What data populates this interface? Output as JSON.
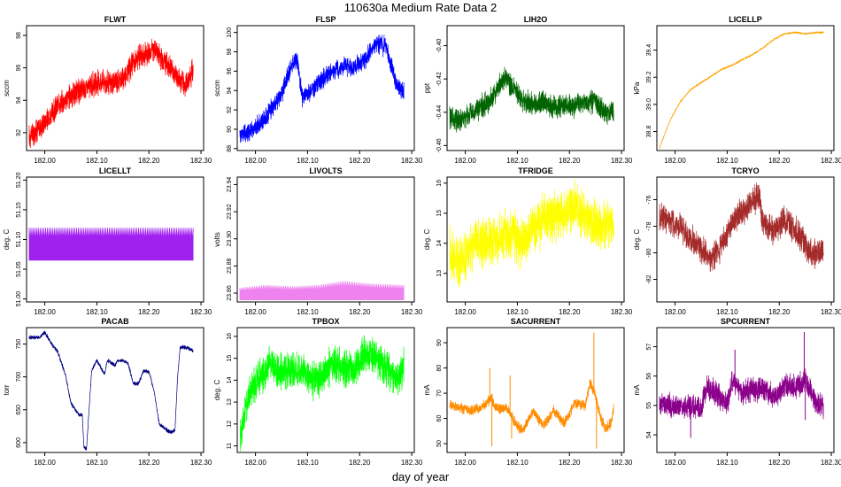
{
  "figure": {
    "title": "110630a   Medium Rate Data 2",
    "xlabel": "day of year"
  },
  "chart_data": [
    {
      "type": "line",
      "title": "FLWT",
      "ylabel": "sccm",
      "color": "#ff0000",
      "xlim": [
        181.965,
        182.305
      ],
      "ylim": [
        90.9,
        98.6
      ],
      "xticks": [
        182.0,
        182.1,
        182.2,
        182.3
      ],
      "xtick_labels": [
        "182.00",
        "182.10",
        "182.20",
        "182.30"
      ],
      "yticks": [
        92,
        94,
        96,
        98
      ],
      "ytick_labels": [
        "92",
        "94",
        "96",
        "98"
      ],
      "x": [
        181.97,
        181.99,
        182.01,
        182.03,
        182.05,
        182.07,
        182.09,
        182.11,
        182.13,
        182.15,
        182.17,
        182.19,
        182.21,
        182.23,
        182.25,
        182.27,
        182.285
      ],
      "y": [
        91.8,
        92.3,
        93.0,
        93.8,
        94.3,
        94.6,
        94.9,
        95.2,
        95.0,
        95.4,
        96.3,
        96.8,
        97.2,
        96.5,
        95.6,
        94.9,
        95.8
      ],
      "noise": 0.9
    },
    {
      "type": "line",
      "title": "FLSP",
      "ylabel": "sccm",
      "color": "#0000ff",
      "xlim": [
        181.965,
        182.305
      ],
      "ylim": [
        87.8,
        100.7
      ],
      "xticks": [
        182.0,
        182.1,
        182.2,
        182.3
      ],
      "xtick_labels": [
        "182.00",
        "182.10",
        "182.20",
        "182.30"
      ],
      "yticks": [
        88,
        90,
        92,
        94,
        96,
        98,
        100
      ],
      "ytick_labels": [
        "88",
        "90",
        "92",
        "94",
        "96",
        "98",
        "100"
      ],
      "x": [
        181.97,
        181.99,
        182.01,
        182.03,
        182.05,
        182.07,
        182.08,
        182.09,
        182.11,
        182.13,
        182.15,
        182.17,
        182.19,
        182.21,
        182.23,
        182.25,
        182.27,
        182.285
      ],
      "y": [
        89.3,
        89.8,
        90.6,
        92.0,
        93.6,
        96.7,
        97.4,
        93.2,
        94.2,
        95.3,
        96.0,
        96.6,
        96.4,
        97.2,
        98.8,
        98.6,
        94.8,
        93.8
      ],
      "noise": 1.2
    },
    {
      "type": "line",
      "title": "LIH2O",
      "ylabel": "ppt",
      "color": "#006400",
      "xlim": [
        181.965,
        182.305
      ],
      "ylim": [
        -0.463,
        -0.388
      ],
      "xticks": [
        182.0,
        182.1,
        182.2,
        182.3
      ],
      "xtick_labels": [
        "182.00",
        "182.10",
        "182.20",
        "182.30"
      ],
      "yticks": [
        -0.46,
        -0.44,
        -0.42,
        -0.4
      ],
      "ytick_labels": [
        "-0.46",
        "-0.44",
        "-0.42",
        "-0.40"
      ],
      "x": [
        181.97,
        181.99,
        182.01,
        182.03,
        182.05,
        182.07,
        182.08,
        182.09,
        182.11,
        182.13,
        182.15,
        182.17,
        182.19,
        182.21,
        182.23,
        182.25,
        182.27,
        182.285
      ],
      "y": [
        -0.443,
        -0.445,
        -0.441,
        -0.437,
        -0.432,
        -0.422,
        -0.419,
        -0.425,
        -0.433,
        -0.436,
        -0.434,
        -0.437,
        -0.436,
        -0.437,
        -0.434,
        -0.433,
        -0.441,
        -0.44
      ],
      "noise": 0.0085
    },
    {
      "type": "line",
      "title": "LICELLP",
      "ylabel": "kPa",
      "color": "#ffa500",
      "xlim": [
        181.965,
        182.305
      ],
      "ylim": [
        38.66,
        39.58
      ],
      "xticks": [
        182.0,
        182.1,
        182.2,
        182.3
      ],
      "xtick_labels": [
        "182.00",
        "182.10",
        "182.20",
        "182.30"
      ],
      "yticks": [
        38.8,
        39.0,
        39.2,
        39.4
      ],
      "ytick_labels": [
        "38.8",
        "39.0",
        "39.2",
        "39.4"
      ],
      "x": [
        181.97,
        181.99,
        182.01,
        182.03,
        182.05,
        182.07,
        182.09,
        182.11,
        182.13,
        182.15,
        182.17,
        182.19,
        182.21,
        182.23,
        182.25,
        182.27,
        182.285
      ],
      "y": [
        38.68,
        38.88,
        39.02,
        39.11,
        39.16,
        39.21,
        39.26,
        39.29,
        39.33,
        39.37,
        39.42,
        39.48,
        39.52,
        39.53,
        39.52,
        39.53,
        39.53
      ],
      "noise": 0.008
    },
    {
      "type": "band",
      "title": "LICELLT",
      "ylabel": "deg. C",
      "color": "#a020f0",
      "xlim": [
        181.965,
        182.305
      ],
      "ylim": [
        50.995,
        51.205
      ],
      "xticks": [
        182.0,
        182.1,
        182.2,
        182.3
      ],
      "xtick_labels": [
        "182.00",
        "182.10",
        "182.20",
        "182.30"
      ],
      "yticks": [
        51.0,
        51.05,
        51.1,
        51.15,
        51.2
      ],
      "ytick_labels": [
        "51.00",
        "51.05",
        "51.10",
        "51.15",
        "51.20"
      ],
      "x": [
        181.97,
        182.285
      ],
      "ymin": [
        51.065,
        51.065
      ],
      "ymax": [
        51.12,
        51.12
      ]
    },
    {
      "type": "band",
      "title": "LIVOLTS",
      "ylabel": "volts",
      "color": "#ee82ee",
      "xlim": [
        181.965,
        182.305
      ],
      "ylim": [
        23.8535,
        23.9455
      ],
      "xticks": [
        182.0,
        182.1,
        182.2,
        182.3
      ],
      "xtick_labels": [
        "182.00",
        "182.10",
        "182.20",
        "182.30"
      ],
      "yticks": [
        23.86,
        23.88,
        23.9,
        23.92,
        23.94
      ],
      "ytick_labels": [
        "23.86",
        "23.88",
        "23.90",
        "23.92",
        "23.94"
      ],
      "x": [
        181.97,
        182.02,
        182.07,
        182.12,
        182.17,
        182.22,
        182.285
      ],
      "ymin": [
        23.855,
        23.855,
        23.855,
        23.855,
        23.855,
        23.855,
        23.855
      ],
      "ymax": [
        23.864,
        23.866,
        23.865,
        23.866,
        23.869,
        23.867,
        23.866
      ]
    },
    {
      "type": "line",
      "title": "TFRIDGE",
      "ylabel": "deg. C",
      "color": "#ffff00",
      "xlim": [
        181.965,
        182.305
      ],
      "ylim": [
        12.05,
        16.2
      ],
      "xticks": [
        182.0,
        182.1,
        182.2,
        182.3
      ],
      "xtick_labels": [
        "182.00",
        "182.10",
        "182.20",
        "182.30"
      ],
      "yticks": [
        13,
        14,
        15,
        16
      ],
      "ytick_labels": [
        "13",
        "14",
        "15",
        "16"
      ],
      "x": [
        181.97,
        181.99,
        182.01,
        182.03,
        182.05,
        182.07,
        182.09,
        182.11,
        182.13,
        182.15,
        182.17,
        182.19,
        182.21,
        182.23,
        182.25,
        182.27,
        182.285
      ],
      "y": [
        13.7,
        13.3,
        13.9,
        14.1,
        14.0,
        14.2,
        14.3,
        14.0,
        14.5,
        14.8,
        14.9,
        15.1,
        15.3,
        14.8,
        14.6,
        14.6,
        14.7
      ],
      "noise": 1.0
    },
    {
      "type": "line",
      "title": "TCRYO",
      "ylabel": "deg. C",
      "color": "#a52a2a",
      "xlim": [
        181.965,
        182.305
      ],
      "ylim": [
        -83.7,
        -74.3
      ],
      "xticks": [
        182.0,
        182.1,
        182.2,
        182.3
      ],
      "xtick_labels": [
        "182.00",
        "182.10",
        "182.20",
        "182.30"
      ],
      "yticks": [
        -82,
        -80,
        -78,
        -76
      ],
      "ytick_labels": [
        "-82",
        "-80",
        "-78",
        "-76"
      ],
      "x": [
        181.97,
        181.99,
        182.01,
        182.03,
        182.05,
        182.07,
        182.09,
        182.11,
        182.13,
        182.15,
        182.16,
        182.17,
        182.19,
        182.21,
        182.23,
        182.25,
        182.27,
        182.285
      ],
      "y": [
        -77.3,
        -77.6,
        -78.0,
        -79.0,
        -79.7,
        -80.6,
        -79.4,
        -77.6,
        -76.9,
        -76.2,
        -75.7,
        -77.8,
        -78.3,
        -77.5,
        -78.3,
        -79.5,
        -80.2,
        -79.6
      ],
      "noise": 1.3
    },
    {
      "type": "line",
      "title": "PACAB",
      "ylabel": "torr",
      "color": "#000080",
      "xlim": [
        181.965,
        182.305
      ],
      "ylim": [
        585,
        775
      ],
      "xticks": [
        182.0,
        182.1,
        182.2,
        182.3
      ],
      "xtick_labels": [
        "182.00",
        "182.10",
        "182.20",
        "182.30"
      ],
      "yticks": [
        600,
        650,
        700,
        750
      ],
      "ytick_labels": [
        "600",
        "650",
        "700",
        "750"
      ],
      "x": [
        181.97,
        181.99,
        182.0,
        182.015,
        182.025,
        182.04,
        182.05,
        182.065,
        182.072,
        182.075,
        182.08,
        182.09,
        182.1,
        182.115,
        182.12,
        182.135,
        182.14,
        182.15,
        182.16,
        182.17,
        182.18,
        182.19,
        182.2,
        182.21,
        182.22,
        182.23,
        182.24,
        182.25,
        182.255,
        182.26,
        182.27,
        182.285
      ],
      "y": [
        760,
        760,
        768,
        748,
        738,
        702,
        660,
        643,
        642,
        594,
        590,
        710,
        725,
        704,
        725,
        718,
        725,
        725,
        720,
        690,
        690,
        710,
        708,
        678,
        628,
        622,
        616,
        618,
        700,
        745,
        745,
        740
      ],
      "noise": 3.5
    },
    {
      "type": "line",
      "title": "TPBOX",
      "ylabel": "deg. C",
      "color": "#00ff00",
      "xlim": [
        181.965,
        182.305
      ],
      "ylim": [
        10.7,
        16.4
      ],
      "xticks": [
        182.0,
        182.1,
        182.2,
        182.3
      ],
      "xtick_labels": [
        "182.00",
        "182.10",
        "182.20",
        "182.30"
      ],
      "yticks": [
        11,
        12,
        13,
        14,
        15,
        16
      ],
      "ytick_labels": [
        "11",
        "12",
        "13",
        "14",
        "15",
        "16"
      ],
      "x": [
        181.97,
        181.98,
        181.99,
        182.01,
        182.03,
        182.05,
        182.07,
        182.09,
        182.11,
        182.13,
        182.15,
        182.17,
        182.19,
        182.21,
        182.23,
        182.25,
        182.27,
        182.285
      ],
      "y": [
        11.2,
        12.5,
        13.5,
        14.2,
        14.8,
        14.3,
        14.4,
        14.4,
        14.0,
        14.2,
        14.8,
        14.6,
        14.4,
        15.3,
        15.0,
        14.6,
        14.0,
        14.6
      ],
      "noise": 1.0
    },
    {
      "type": "line",
      "title": "SACURRENT",
      "ylabel": "mA",
      "color": "#ff8c00",
      "xlim": [
        181.965,
        182.305
      ],
      "ylim": [
        46.5,
        96
      ],
      "xticks": [
        182.0,
        182.1,
        182.2,
        182.3
      ],
      "xtick_labels": [
        "182.00",
        "182.10",
        "182.20",
        "182.30"
      ],
      "yticks": [
        50,
        60,
        70,
        80,
        90
      ],
      "ytick_labels": [
        "50",
        "60",
        "70",
        "80",
        "90"
      ],
      "x": [
        181.97,
        181.99,
        182.01,
        182.03,
        182.05,
        182.06,
        182.08,
        182.1,
        182.11,
        182.13,
        182.15,
        182.17,
        182.19,
        182.21,
        182.23,
        182.24,
        182.25,
        182.26,
        182.27,
        182.28,
        182.285
      ],
      "y": [
        65,
        64,
        63,
        64,
        68,
        64,
        64,
        57,
        55,
        63,
        57,
        63,
        58,
        66,
        65,
        74,
        69,
        60,
        56,
        58,
        64
      ],
      "noise": 2.5,
      "spikes": [
        {
          "x": 182.047,
          "y": 80
        },
        {
          "x": 182.051,
          "y": 49
        },
        {
          "x": 182.086,
          "y": 77
        },
        {
          "x": 182.089,
          "y": 52
        },
        {
          "x": 182.247,
          "y": 94
        },
        {
          "x": 182.252,
          "y": 48
        }
      ]
    },
    {
      "type": "line",
      "title": "SPCURRENT",
      "ylabel": "mA",
      "color": "#8b008b",
      "xlim": [
        181.965,
        182.305
      ],
      "ylim": [
        53.4,
        57.65
      ],
      "xticks": [
        182.0,
        182.1,
        182.2,
        182.3
      ],
      "xtick_labels": [
        "182.00",
        "182.10",
        "182.20",
        "182.30"
      ],
      "yticks": [
        54,
        55,
        56,
        57
      ],
      "ytick_labels": [
        "54",
        "55",
        "56",
        "57"
      ],
      "x": [
        181.97,
        181.99,
        182.01,
        182.03,
        182.05,
        182.06,
        182.08,
        182.1,
        182.11,
        182.13,
        182.15,
        182.17,
        182.19,
        182.21,
        182.23,
        182.25,
        182.27,
        182.285
      ],
      "y": [
        55.1,
        55.0,
        54.9,
        55.0,
        54.9,
        55.6,
        55.4,
        55.0,
        55.9,
        55.4,
        55.6,
        55.5,
        55.3,
        55.7,
        55.6,
        55.9,
        55.0,
        55.0
      ],
      "noise": 0.5,
      "spikes": [
        {
          "x": 182.248,
          "y": 57.5
        },
        {
          "x": 182.25,
          "y": 54.5
        },
        {
          "x": 182.03,
          "y": 53.9
        },
        {
          "x": 182.115,
          "y": 56.9
        }
      ]
    }
  ]
}
